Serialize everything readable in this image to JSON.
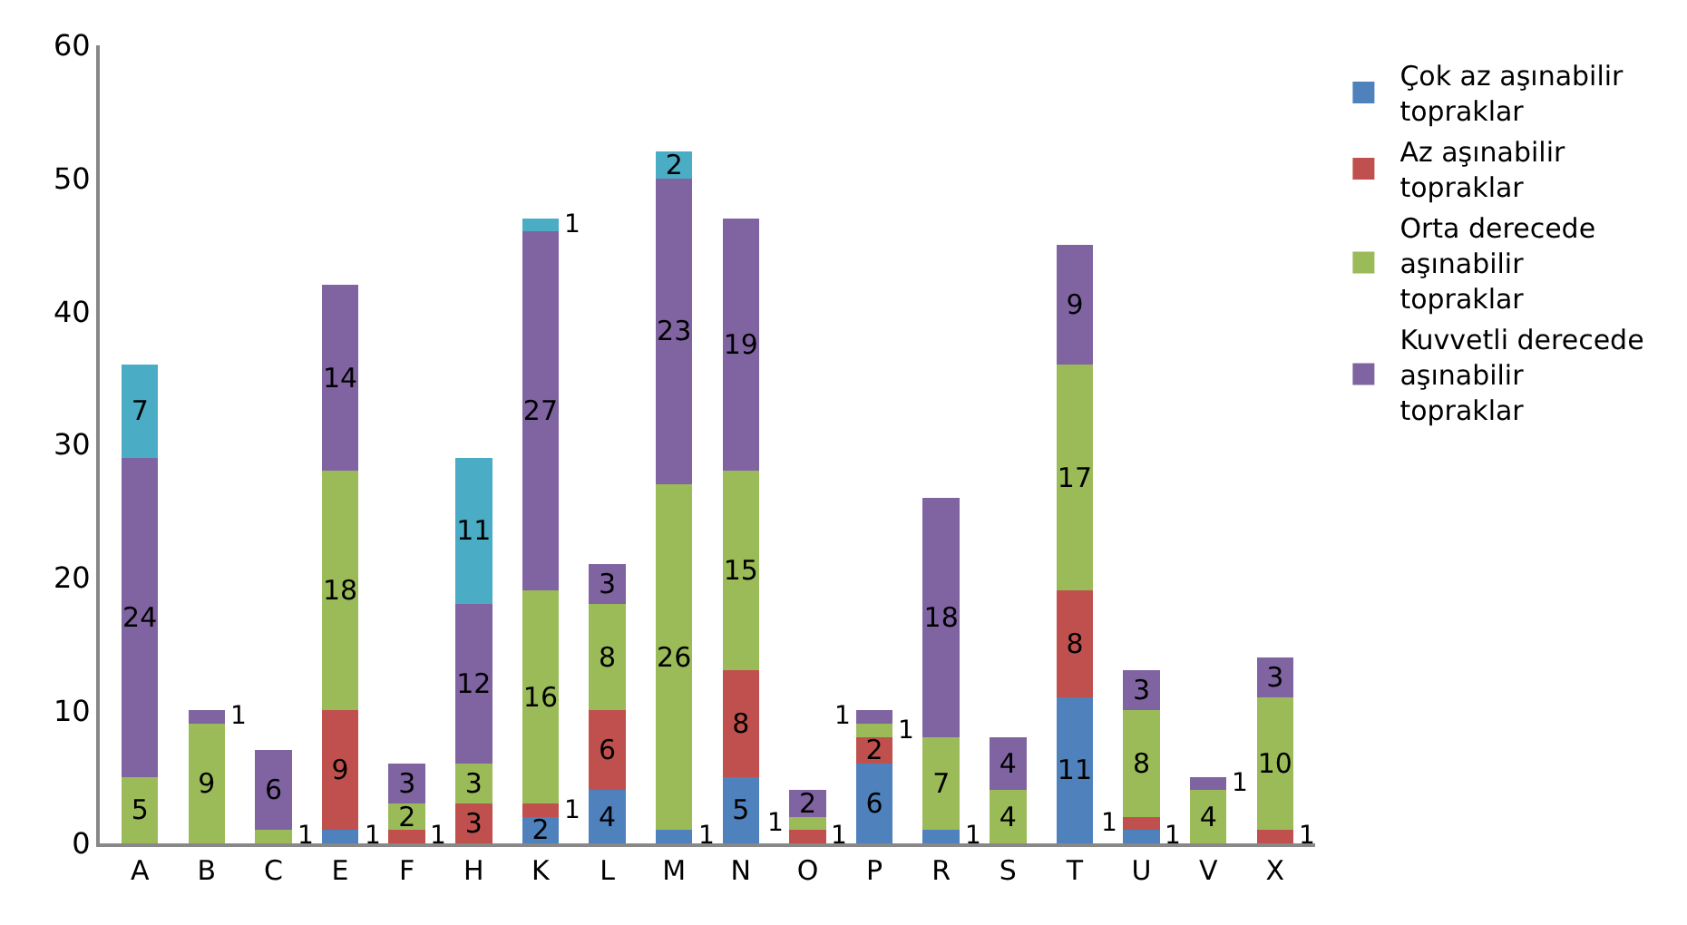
{
  "chart_data": {
    "type": "bar",
    "stacked": true,
    "data_labels": true,
    "grid": false,
    "legend": "right",
    "categories": [
      "A",
      "B",
      "C",
      "E",
      "F",
      "H",
      "K",
      "L",
      "M",
      "N",
      "O",
      "P",
      "R",
      "S",
      "T",
      "U",
      "V",
      "X"
    ],
    "ylim": [
      0,
      60
    ],
    "yticks": [
      0,
      10,
      20,
      30,
      40,
      50,
      60
    ],
    "series": [
      {
        "name": "Çok az aşınabilir topraklar",
        "color": "#4f81bd",
        "values": [
          null,
          null,
          null,
          1,
          null,
          null,
          2,
          4,
          1,
          5,
          null,
          6,
          1,
          null,
          11,
          1,
          null,
          null
        ]
      },
      {
        "name": "Az aşınabilir topraklar",
        "color": "#c0504d",
        "values": [
          null,
          null,
          null,
          9,
          1,
          3,
          1,
          6,
          null,
          8,
          1,
          2,
          null,
          null,
          8,
          1,
          null,
          1
        ]
      },
      {
        "name": "Orta derecede aşınabilir topraklar",
        "color": "#9bbb59",
        "values": [
          5,
          9,
          1,
          18,
          2,
          3,
          16,
          8,
          26,
          15,
          1,
          1,
          7,
          4,
          17,
          8,
          4,
          10
        ]
      },
      {
        "name": "Kuvvetli derecede aşınabilir topraklar",
        "color": "#8064a2",
        "values": [
          24,
          1,
          6,
          14,
          3,
          12,
          27,
          3,
          23,
          19,
          2,
          1,
          18,
          4,
          9,
          3,
          1,
          3
        ]
      },
      {
        "color": "#4bacc6",
        "values": [
          7,
          null,
          null,
          null,
          null,
          11,
          1,
          null,
          2,
          null,
          null,
          null,
          null,
          null,
          null,
          null,
          null,
          null
        ]
      }
    ]
  }
}
